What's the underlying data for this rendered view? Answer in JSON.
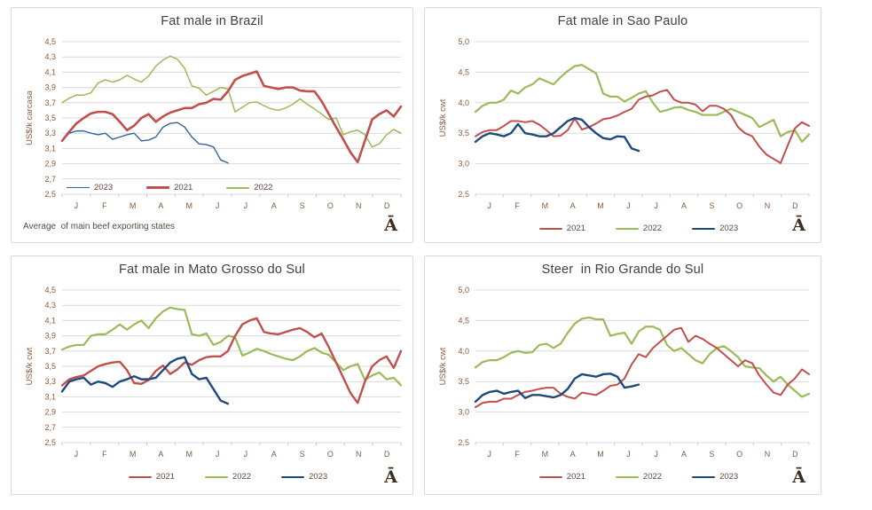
{
  "page": {
    "background": "#FFFFFF"
  },
  "style": {
    "panel_border": "#D9D9D9",
    "grid_color": "#D9D9D9",
    "tick_color": "#C9C9C9",
    "title_color": "#404040",
    "axis_text_color": "#8A5A3C",
    "legend_text_color": "#5D4A3F",
    "footnote_color": "#5D4A3F",
    "logo_color": "#3E2C1E",
    "series_colors": {
      "2021": "#C0504D",
      "2022": "#9BBB59",
      "2023": "#1F497D",
      "2023_light": "#31659C"
    }
  },
  "months": [
    "J",
    "F",
    "M",
    "A",
    "M",
    "J",
    "J",
    "A",
    "S",
    "O",
    "N",
    "D"
  ],
  "logo_glyph": "Ā",
  "chart_data": [
    {
      "type": "line",
      "title": "Fat male in Brazil",
      "ylabel": "US$/k carcasa",
      "ylim": [
        2.5,
        4.5
      ],
      "ytick_labels": [
        "4,5",
        "4,3",
        "4,1",
        "3,9",
        "3,7",
        "3,5",
        "3,3",
        "3,1",
        "2,9",
        "2,7",
        "2,5"
      ],
      "grid": true,
      "points_per_year": 48,
      "legend_position": "inside",
      "legend_order": [
        "2023",
        "2021",
        "2022"
      ],
      "draw_order": [
        "2022",
        "2023",
        "2021"
      ],
      "footnote": "Average  of main beef exporting states",
      "series": [
        {
          "name": "2021",
          "color": "#C0504D",
          "width": 2.6,
          "values": [
            3.2,
            3.32,
            3.43,
            3.5,
            3.56,
            3.58,
            3.58,
            3.55,
            3.45,
            3.34,
            3.4,
            3.5,
            3.55,
            3.45,
            3.52,
            3.57,
            3.6,
            3.63,
            3.63,
            3.68,
            3.7,
            3.75,
            3.74,
            3.85,
            4.0,
            4.05,
            4.08,
            4.11,
            3.92,
            3.9,
            3.88,
            3.9,
            3.9,
            3.86,
            3.85,
            3.85,
            3.72,
            3.55,
            3.38,
            3.22,
            3.05,
            2.92,
            3.2,
            3.48,
            3.55,
            3.6,
            3.52,
            3.65
          ]
        },
        {
          "name": "2022",
          "color": "#9BBB59",
          "width": 1.5,
          "values": [
            3.7,
            3.76,
            3.8,
            3.8,
            3.83,
            3.96,
            4.0,
            3.97,
            4.0,
            4.06,
            4.01,
            3.97,
            4.05,
            4.18,
            4.26,
            4.31,
            4.27,
            4.15,
            3.92,
            3.89,
            3.8,
            3.85,
            3.9,
            3.88,
            3.58,
            3.64,
            3.7,
            3.71,
            3.66,
            3.62,
            3.6,
            3.63,
            3.68,
            3.75,
            3.68,
            3.62,
            3.55,
            3.48,
            3.5,
            3.28,
            3.32,
            3.34,
            3.28,
            3.12,
            3.16,
            3.28,
            3.35,
            3.3
          ]
        },
        {
          "name": "2023",
          "color": "#31659C",
          "width": 1.4,
          "values": [
            3.2,
            3.3,
            3.33,
            3.33,
            3.3,
            3.28,
            3.3,
            3.22,
            3.25,
            3.28,
            3.3,
            3.2,
            3.21,
            3.25,
            3.38,
            3.43,
            3.44,
            3.38,
            3.25,
            3.16,
            3.15,
            3.12,
            2.95,
            2.91
          ]
        }
      ]
    },
    {
      "type": "line",
      "title": "Fat male in Sao Paulo",
      "ylabel": "US$/k cwt",
      "ylim": [
        2.5,
        5.0
      ],
      "ytick_labels": [
        "5,0",
        "4,5",
        "4,0",
        "3,5",
        "3,0",
        "2,5"
      ],
      "grid": true,
      "points_per_year": 48,
      "legend_position": "below",
      "legend_order": [
        "2021",
        "2022",
        "2023"
      ],
      "draw_order": [
        "2022",
        "2021",
        "2023"
      ],
      "footnote": "",
      "series": [
        {
          "name": "2021",
          "color": "#C0504D",
          "width": 2.0,
          "values": [
            3.45,
            3.52,
            3.55,
            3.55,
            3.62,
            3.7,
            3.7,
            3.68,
            3.7,
            3.64,
            3.55,
            3.45,
            3.46,
            3.55,
            3.74,
            3.56,
            3.6,
            3.66,
            3.73,
            3.75,
            3.79,
            3.85,
            3.9,
            4.05,
            4.1,
            4.12,
            4.18,
            4.21,
            4.05,
            4.0,
            4.0,
            3.97,
            3.86,
            3.95,
            3.95,
            3.9,
            3.8,
            3.6,
            3.5,
            3.45,
            3.28,
            3.15,
            3.08,
            3.01,
            3.3,
            3.58,
            3.68,
            3.62
          ]
        },
        {
          "name": "2022",
          "color": "#9BBB59",
          "width": 2.2,
          "values": [
            3.85,
            3.95,
            4.0,
            4.0,
            4.05,
            4.2,
            4.15,
            4.25,
            4.3,
            4.4,
            4.35,
            4.3,
            4.42,
            4.52,
            4.6,
            4.62,
            4.55,
            4.48,
            4.15,
            4.1,
            4.1,
            4.02,
            4.08,
            4.15,
            4.19,
            4.0,
            3.85,
            3.88,
            3.92,
            3.93,
            3.88,
            3.85,
            3.8,
            3.8,
            3.8,
            3.85,
            3.9,
            3.85,
            3.8,
            3.75,
            3.6,
            3.66,
            3.72,
            3.45,
            3.52,
            3.55,
            3.36,
            3.48
          ]
        },
        {
          "name": "2023",
          "color": "#1F497D",
          "width": 2.4,
          "values": [
            3.36,
            3.45,
            3.5,
            3.48,
            3.45,
            3.5,
            3.65,
            3.5,
            3.48,
            3.45,
            3.45,
            3.5,
            3.6,
            3.7,
            3.75,
            3.72,
            3.6,
            3.5,
            3.42,
            3.4,
            3.45,
            3.44,
            3.25,
            3.21
          ]
        }
      ]
    },
    {
      "type": "line",
      "title": "Fat male in Mato Grosso do Sul",
      "ylabel": "US$/k cwt",
      "ylim": [
        2.5,
        4.5
      ],
      "ytick_labels": [
        "4,5",
        "4,3",
        "4,1",
        "3,9",
        "3,7",
        "3,5",
        "3,3",
        "3,1",
        "2,9",
        "2,7",
        "2,5"
      ],
      "grid": true,
      "points_per_year": 48,
      "legend_position": "below",
      "legend_order": [
        "2021",
        "2022",
        "2023"
      ],
      "draw_order": [
        "2022",
        "2021",
        "2023"
      ],
      "footnote": "",
      "series": [
        {
          "name": "2021",
          "color": "#C0504D",
          "width": 2.4,
          "values": [
            3.25,
            3.33,
            3.36,
            3.38,
            3.44,
            3.5,
            3.53,
            3.55,
            3.56,
            3.45,
            3.28,
            3.27,
            3.32,
            3.44,
            3.51,
            3.4,
            3.46,
            3.55,
            3.52,
            3.58,
            3.62,
            3.63,
            3.63,
            3.7,
            3.9,
            4.05,
            4.1,
            4.13,
            3.95,
            3.93,
            3.92,
            3.95,
            3.98,
            4.0,
            3.95,
            3.88,
            3.93,
            3.75,
            3.55,
            3.35,
            3.15,
            3.02,
            3.3,
            3.5,
            3.58,
            3.63,
            3.48,
            3.7
          ]
        },
        {
          "name": "2022",
          "color": "#9BBB59",
          "width": 2.2,
          "values": [
            3.72,
            3.76,
            3.78,
            3.78,
            3.9,
            3.92,
            3.92,
            3.98,
            4.05,
            3.98,
            4.05,
            4.1,
            4.0,
            4.13,
            4.22,
            4.27,
            4.25,
            4.24,
            3.92,
            3.9,
            3.93,
            3.78,
            3.82,
            3.9,
            3.88,
            3.64,
            3.68,
            3.73,
            3.7,
            3.66,
            3.63,
            3.6,
            3.58,
            3.63,
            3.7,
            3.74,
            3.68,
            3.65,
            3.55,
            3.45,
            3.5,
            3.53,
            3.32,
            3.38,
            3.42,
            3.33,
            3.35,
            3.25
          ]
        },
        {
          "name": "2023",
          "color": "#1F497D",
          "width": 2.4,
          "values": [
            3.17,
            3.3,
            3.33,
            3.35,
            3.26,
            3.3,
            3.28,
            3.23,
            3.3,
            3.33,
            3.37,
            3.33,
            3.33,
            3.35,
            3.45,
            3.55,
            3.6,
            3.62,
            3.4,
            3.33,
            3.35,
            3.2,
            3.05,
            3.01
          ]
        }
      ]
    },
    {
      "type": "line",
      "title": "Steer  in Rio Grande do Sul",
      "ylabel": "US$/k cwt",
      "ylim": [
        2.5,
        5.0
      ],
      "ytick_labels": [
        "5,0",
        "4,5",
        "4,0",
        "3,5",
        "3,0",
        "2,5"
      ],
      "grid": true,
      "points_per_year": 48,
      "legend_position": "below",
      "legend_order": [
        "2021",
        "2022",
        "2023"
      ],
      "draw_order": [
        "2022",
        "2021",
        "2023"
      ],
      "footnote": "",
      "series": [
        {
          "name": "2021",
          "color": "#C0504D",
          "width": 2.0,
          "values": [
            3.08,
            3.15,
            3.17,
            3.17,
            3.22,
            3.22,
            3.28,
            3.33,
            3.35,
            3.38,
            3.4,
            3.4,
            3.3,
            3.25,
            3.22,
            3.32,
            3.3,
            3.28,
            3.35,
            3.43,
            3.45,
            3.55,
            3.78,
            3.95,
            3.9,
            4.05,
            4.15,
            4.25,
            4.35,
            4.38,
            4.15,
            4.25,
            4.2,
            4.12,
            4.05,
            3.95,
            3.85,
            3.75,
            3.85,
            3.8,
            3.6,
            3.45,
            3.32,
            3.28,
            3.45,
            3.55,
            3.7,
            3.62
          ]
        },
        {
          "name": "2022",
          "color": "#9BBB59",
          "width": 2.2,
          "values": [
            3.73,
            3.82,
            3.85,
            3.85,
            3.9,
            3.97,
            4.0,
            3.97,
            3.98,
            4.1,
            4.12,
            4.05,
            4.12,
            4.3,
            4.45,
            4.53,
            4.55,
            4.52,
            4.52,
            4.25,
            4.28,
            4.3,
            4.12,
            4.32,
            4.4,
            4.4,
            4.35,
            4.1,
            4.0,
            4.05,
            3.95,
            3.85,
            3.8,
            3.95,
            4.05,
            4.08,
            4.0,
            3.9,
            3.75,
            3.73,
            3.72,
            3.6,
            3.5,
            3.58,
            3.45,
            3.35,
            3.25,
            3.3
          ]
        },
        {
          "name": "2023",
          "color": "#1F497D",
          "width": 2.4,
          "values": [
            3.17,
            3.28,
            3.33,
            3.35,
            3.3,
            3.33,
            3.35,
            3.23,
            3.28,
            3.28,
            3.26,
            3.24,
            3.28,
            3.38,
            3.55,
            3.62,
            3.6,
            3.58,
            3.62,
            3.63,
            3.58,
            3.4,
            3.42,
            3.45
          ]
        }
      ]
    }
  ]
}
